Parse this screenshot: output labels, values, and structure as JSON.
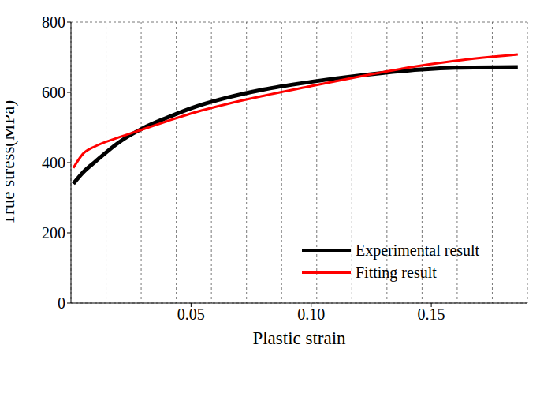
{
  "chart_data": {
    "type": "line",
    "x_label": "Plastic strain",
    "y_label": "True stress(MPa)",
    "x": [
      0.001,
      0.005,
      0.01,
      0.02,
      0.03,
      0.04,
      0.05,
      0.065,
      0.08,
      0.1,
      0.12,
      0.14,
      0.16,
      0.186
    ],
    "series": [
      {
        "name": "Experimental result",
        "color": "#000000",
        "values": [
          340,
          372,
          402,
          458,
          498,
          528,
          555,
          585,
          608,
          630,
          648,
          662,
          670,
          672
        ]
      },
      {
        "name": "Fitting result",
        "color": "#ff0000",
        "values": [
          385,
          425,
          446,
          472,
          495,
          518,
          540,
          567,
          590,
          618,
          645,
          670,
          690,
          708
        ]
      }
    ],
    "xlim": [
      0,
      0.19
    ],
    "xticks": [
      0.05,
      {
        "value": 0.1,
        "label": "0.10"
      },
      0.15
    ],
    "ylim": [
      0,
      800
    ],
    "yticks": [
      0,
      200,
      400,
      600,
      800
    ],
    "grid": true,
    "legend": "lower right"
  }
}
